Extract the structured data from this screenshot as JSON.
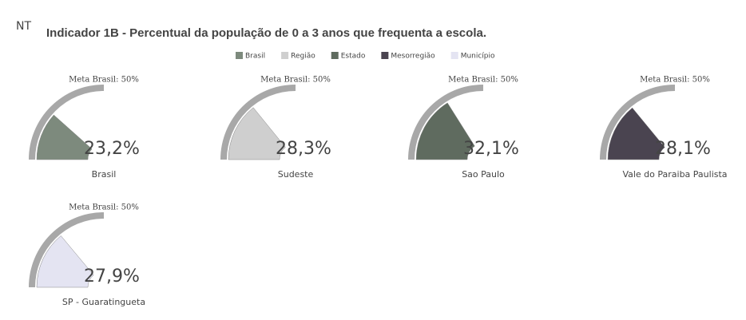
{
  "chart_data": {
    "type": "gauge",
    "logo": "NT",
    "title": "Indicador 1B - Percentual da população de 0 a 3 anos que frequenta a escola.",
    "ylim": [
      0,
      100
    ],
    "target": 50,
    "target_label": "Meta Brasil: 50%",
    "series": [
      {
        "name": "Brasil",
        "color": "#7d8a7d",
        "label": "Brasil",
        "value": 23.2,
        "value_label": "23,2%"
      },
      {
        "name": "Região",
        "color": "#cfcfcf",
        "label": "Sudeste",
        "value": 28.3,
        "value_label": "28,3%"
      },
      {
        "name": "Estado",
        "color": "#5f6b5f",
        "label": "Sao Paulo",
        "value": 32.1,
        "value_label": "32,1%"
      },
      {
        "name": "Mesorregião",
        "color": "#4a4450",
        "label": "Vale do Paraiba Paulista",
        "value": 28.1,
        "value_label": "28,1%"
      },
      {
        "name": "Município",
        "color": "#e4e4f2",
        "label": "SP - Guaratingueta",
        "value": 27.9,
        "value_label": "27,9%"
      }
    ]
  }
}
